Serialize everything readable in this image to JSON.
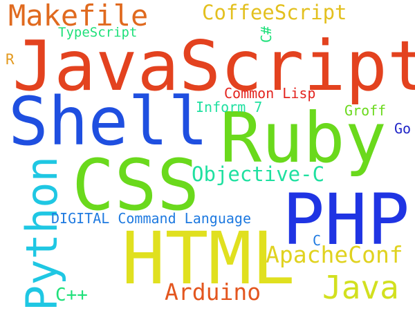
{
  "words": [
    {
      "key": "javascript",
      "text": "JavaScript",
      "color": "#e3421f"
    },
    {
      "key": "shell",
      "text": "Shell",
      "color": "#1f4fe0"
    },
    {
      "key": "ruby",
      "text": "Ruby",
      "color": "#6ad91c"
    },
    {
      "key": "css",
      "text": "CSS",
      "color": "#6ad91c"
    },
    {
      "key": "php",
      "text": "PHP",
      "color": "#1f34e3"
    },
    {
      "key": "html",
      "text": "HTML",
      "color": "#e0e01f"
    },
    {
      "key": "python",
      "text": "Python",
      "color": "#1fc7e3"
    },
    {
      "key": "makefile",
      "text": "Makefile",
      "color": "#e06a1f"
    },
    {
      "key": "coffeescript",
      "text": "CoffeeScript",
      "color": "#e3c01f"
    },
    {
      "key": "typescript",
      "text": "TypeScript",
      "color": "#1fe07a"
    },
    {
      "key": "csharp",
      "text": "C#",
      "color": "#1fe07a"
    },
    {
      "key": "r",
      "text": "R",
      "color": "#e39a1f"
    },
    {
      "key": "common_lisp",
      "text": "Common Lisp",
      "color": "#e3241f"
    },
    {
      "key": "inform7",
      "text": "Inform 7",
      "color": "#1fe0a0"
    },
    {
      "key": "groff",
      "text": "Groff",
      "color": "#6ad91c"
    },
    {
      "key": "go",
      "text": "Go",
      "color": "#1f24c7"
    },
    {
      "key": "objective_c",
      "text": "Objective-C",
      "color": "#1fe0a0"
    },
    {
      "key": "dcl",
      "text": "DIGITAL Command Language",
      "color": "#1f7ae0"
    },
    {
      "key": "c",
      "text": "C",
      "color": "#1f7ae0"
    },
    {
      "key": "apacheconf",
      "text": "ApacheConf",
      "color": "#e0d21f"
    },
    {
      "key": "java",
      "text": "Java",
      "color": "#d2e01f"
    },
    {
      "key": "arduino",
      "text": "Arduino",
      "color": "#e3561f"
    },
    {
      "key": "cpp",
      "text": "C++",
      "color": "#1fe07a"
    }
  ]
}
